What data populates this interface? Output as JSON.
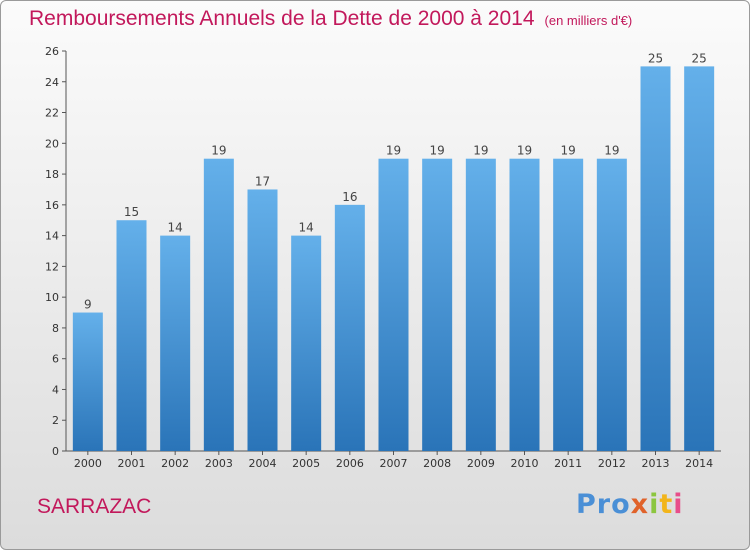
{
  "title": "Remboursements Annuels de la Dette de 2000 à 2014",
  "subtitle": "(en milliers d'€)",
  "commune": "SARRAZAC",
  "logo": [
    "Pro",
    "x",
    "i",
    "t",
    "i"
  ],
  "colors": {
    "bar": "#3f8fd2",
    "title": "#c2185b"
  },
  "chart_data": {
    "type": "bar",
    "title": "Remboursements Annuels de la Dette de 2000 à 2014",
    "subtitle": "(en milliers d'€)",
    "xlabel": "",
    "ylabel": "",
    "categories": [
      "2000",
      "2001",
      "2002",
      "2003",
      "2004",
      "2005",
      "2006",
      "2007",
      "2008",
      "2009",
      "2010",
      "2011",
      "2012",
      "2013",
      "2014"
    ],
    "values": [
      9,
      15,
      14,
      19,
      17,
      14,
      16,
      19,
      19,
      19,
      19,
      19,
      19,
      25,
      25
    ],
    "ylim": [
      0,
      26
    ],
    "yticks": [
      0,
      2,
      4,
      6,
      8,
      10,
      12,
      14,
      16,
      18,
      20,
      22,
      24,
      26
    ],
    "grid": false,
    "data_labels": true
  }
}
